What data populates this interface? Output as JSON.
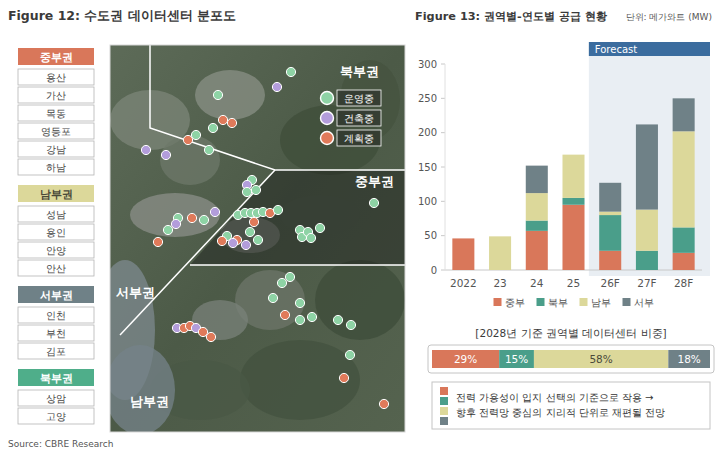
{
  "map": {
    "title": "Figure 12: 수도권 데이터센터 분포도",
    "region_groups": [
      {
        "name": "중부권",
        "color": "#d9775a",
        "areas": [
          "용산",
          "가산",
          "목동",
          "영등포",
          "강남",
          "하남"
        ]
      },
      {
        "name": "남부권",
        "color": "#dcd89a",
        "areas": [
          "성남",
          "용인",
          "안양",
          "안산"
        ]
      },
      {
        "name": "서부권",
        "color": "#6f8187",
        "areas": [
          "인천",
          "부천",
          "김포"
        ]
      },
      {
        "name": "북부권",
        "color": "#4fae8a",
        "areas": [
          "상암",
          "고양"
        ]
      }
    ],
    "region_labels": [
      "북부권",
      "중부권",
      "서부권",
      "남부권"
    ],
    "legend": [
      {
        "label": "운영중",
        "color": "#8ed3a5"
      },
      {
        "label": "건축중",
        "color": "#b39ddb"
      },
      {
        "label": "계획중",
        "color": "#e07a5a"
      }
    ]
  },
  "chart_data": [
    {
      "type": "bar",
      "title": "Figure 13: 권역별-연도별 공급 현황",
      "subtitle": "단위: 메가와트 (MW)",
      "categories": [
        "2022",
        "23",
        "24",
        "25",
        "26F",
        "27F",
        "28F"
      ],
      "series": [
        {
          "name": "중부",
          "color": "#d9775a",
          "values": [
            46,
            0,
            57,
            95,
            28,
            0,
            25
          ]
        },
        {
          "name": "북부",
          "color": "#4a9e8a",
          "values": [
            0,
            0,
            15,
            10,
            52,
            28,
            37
          ]
        },
        {
          "name": "남부",
          "color": "#dcd89a",
          "values": [
            0,
            49,
            40,
            63,
            5,
            60,
            140
          ]
        },
        {
          "name": "서부",
          "color": "#6f8187",
          "values": [
            0,
            0,
            40,
            0,
            42,
            124,
            48
          ]
        }
      ],
      "stacked": true,
      "ylim": [
        0,
        300
      ],
      "yticks": [
        0,
        50,
        100,
        150,
        200,
        250,
        300
      ],
      "grid": false,
      "legend": "bottom",
      "annotations": [
        {
          "text": "Forecast",
          "from": "26F",
          "to": "28F"
        }
      ]
    },
    {
      "type": "bar",
      "orientation": "horizontal",
      "stacked": true,
      "title": "[2028년 기준 권역별 데이터센터 비중]",
      "categories": [
        null
      ],
      "series": [
        {
          "color": "#d9775a",
          "values": [
            29
          ],
          "value_labels": [
            "29%"
          ]
        },
        {
          "color": "#4a9e8a",
          "values": [
            15
          ],
          "value_labels": [
            "15%"
          ]
        },
        {
          "color": "#dcd89a",
          "values": [
            58
          ],
          "value_labels": [
            "58%"
          ]
        },
        {
          "color": "#6f8187",
          "values": [
            18
          ],
          "value_labels": [
            "18%"
          ]
        }
      ],
      "xlim": [
        0,
        120
      ],
      "tick_labels": false,
      "data_labels": true
    }
  ],
  "note": [
    "전력 가용성이 입지 선택의 기준으로 작용 →",
    "향후 전력망 중심의 지리적 단위로 재편될 전망"
  ],
  "source": "Source: CBRE Research"
}
